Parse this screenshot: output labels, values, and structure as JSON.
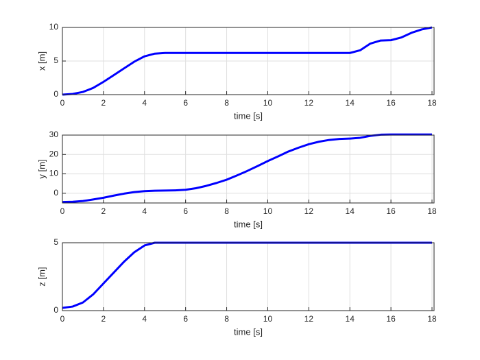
{
  "chart_data": [
    {
      "type": "line",
      "xlabel": "time [s]",
      "ylabel": "x [m]",
      "x": [
        0,
        0.5,
        1,
        1.5,
        2,
        2.5,
        3,
        3.5,
        4,
        4.5,
        5,
        5.5,
        6,
        6.5,
        7,
        7.5,
        8,
        8.5,
        9,
        9.5,
        10,
        10.5,
        11,
        11.5,
        12,
        12.5,
        13,
        13.5,
        14,
        14.5,
        15,
        15.5,
        16,
        16.5,
        17,
        17.5,
        18
      ],
      "series": [
        {
          "color": "#0000ff",
          "values": [
            0,
            0.1,
            0.4,
            1.0,
            1.9,
            2.9,
            3.9,
            4.9,
            5.7,
            6.1,
            6.2,
            6.2,
            6.2,
            6.2,
            6.2,
            6.2,
            6.2,
            6.2,
            6.2,
            6.2,
            6.2,
            6.2,
            6.2,
            6.2,
            6.2,
            6.2,
            6.2,
            6.2,
            6.2,
            6.6,
            7.6,
            8.05,
            8.1,
            8.5,
            9.2,
            9.7,
            10.0
          ]
        }
      ],
      "xlim": [
        0,
        18.1
      ],
      "xticks": [
        0,
        2,
        4,
        6,
        8,
        10,
        12,
        14,
        16,
        18
      ],
      "ylim": [
        0,
        10
      ],
      "yticks": [
        0,
        5,
        10
      ],
      "grid": true
    },
    {
      "type": "line",
      "xlabel": "time [s]",
      "ylabel": "y [m]",
      "x": [
        0,
        0.5,
        1,
        1.5,
        2,
        2.5,
        3,
        3.5,
        4,
        4.5,
        5,
        5.5,
        6,
        6.5,
        7,
        7.5,
        8,
        8.5,
        9,
        9.5,
        10,
        10.5,
        11,
        11.5,
        12,
        12.5,
        13,
        13.5,
        14,
        14.5,
        15,
        15.5,
        16,
        16.5,
        17,
        17.5,
        18
      ],
      "series": [
        {
          "color": "#0000ff",
          "values": [
            -4.5,
            -4.4,
            -4,
            -3.2,
            -2.3,
            -1.2,
            -0.2,
            0.6,
            1.1,
            1.3,
            1.4,
            1.5,
            1.8,
            2.6,
            3.8,
            5.3,
            7.0,
            9.2,
            11.5,
            14,
            16.6,
            19,
            21.5,
            23.5,
            25.3,
            26.6,
            27.5,
            28.0,
            28.2,
            28.6,
            29.6,
            30.2,
            30.3,
            30.3,
            30.3,
            30.3,
            30.3
          ]
        }
      ],
      "xlim": [
        0,
        18.1
      ],
      "xticks": [
        0,
        2,
        4,
        6,
        8,
        10,
        12,
        14,
        16,
        18
      ],
      "ylim": [
        -5,
        30
      ],
      "yticks": [
        0,
        10,
        20,
        30
      ],
      "grid": true
    },
    {
      "type": "line",
      "xlabel": "time [s]",
      "ylabel": "z [m]",
      "x": [
        0,
        0.5,
        1,
        1.5,
        2,
        2.5,
        3,
        3.5,
        4,
        4.5,
        5,
        5.5,
        6,
        6.5,
        7,
        7.5,
        8,
        8.5,
        9,
        9.5,
        10,
        10.5,
        11,
        11.5,
        12,
        12.5,
        13,
        13.5,
        14,
        14.5,
        15,
        15.5,
        16,
        16.5,
        17,
        17.5,
        18
      ],
      "series": [
        {
          "color": "#0000ff",
          "values": [
            0.2,
            0.3,
            0.6,
            1.2,
            2.0,
            2.8,
            3.6,
            4.3,
            4.8,
            5.0,
            5.0,
            5.0,
            5.0,
            5.0,
            5.0,
            5.0,
            5.0,
            5.0,
            5.0,
            5.0,
            5.0,
            5.0,
            5.0,
            5.0,
            5.0,
            5.0,
            5.0,
            5.0,
            5.0,
            5.0,
            5.0,
            5.0,
            5.0,
            5.0,
            5.0,
            5.0,
            5.0
          ]
        }
      ],
      "xlim": [
        0,
        18.1
      ],
      "xticks": [
        0,
        2,
        4,
        6,
        8,
        10,
        12,
        14,
        16,
        18
      ],
      "ylim": [
        0,
        5
      ],
      "yticks": [
        0,
        5
      ],
      "grid": true
    }
  ]
}
